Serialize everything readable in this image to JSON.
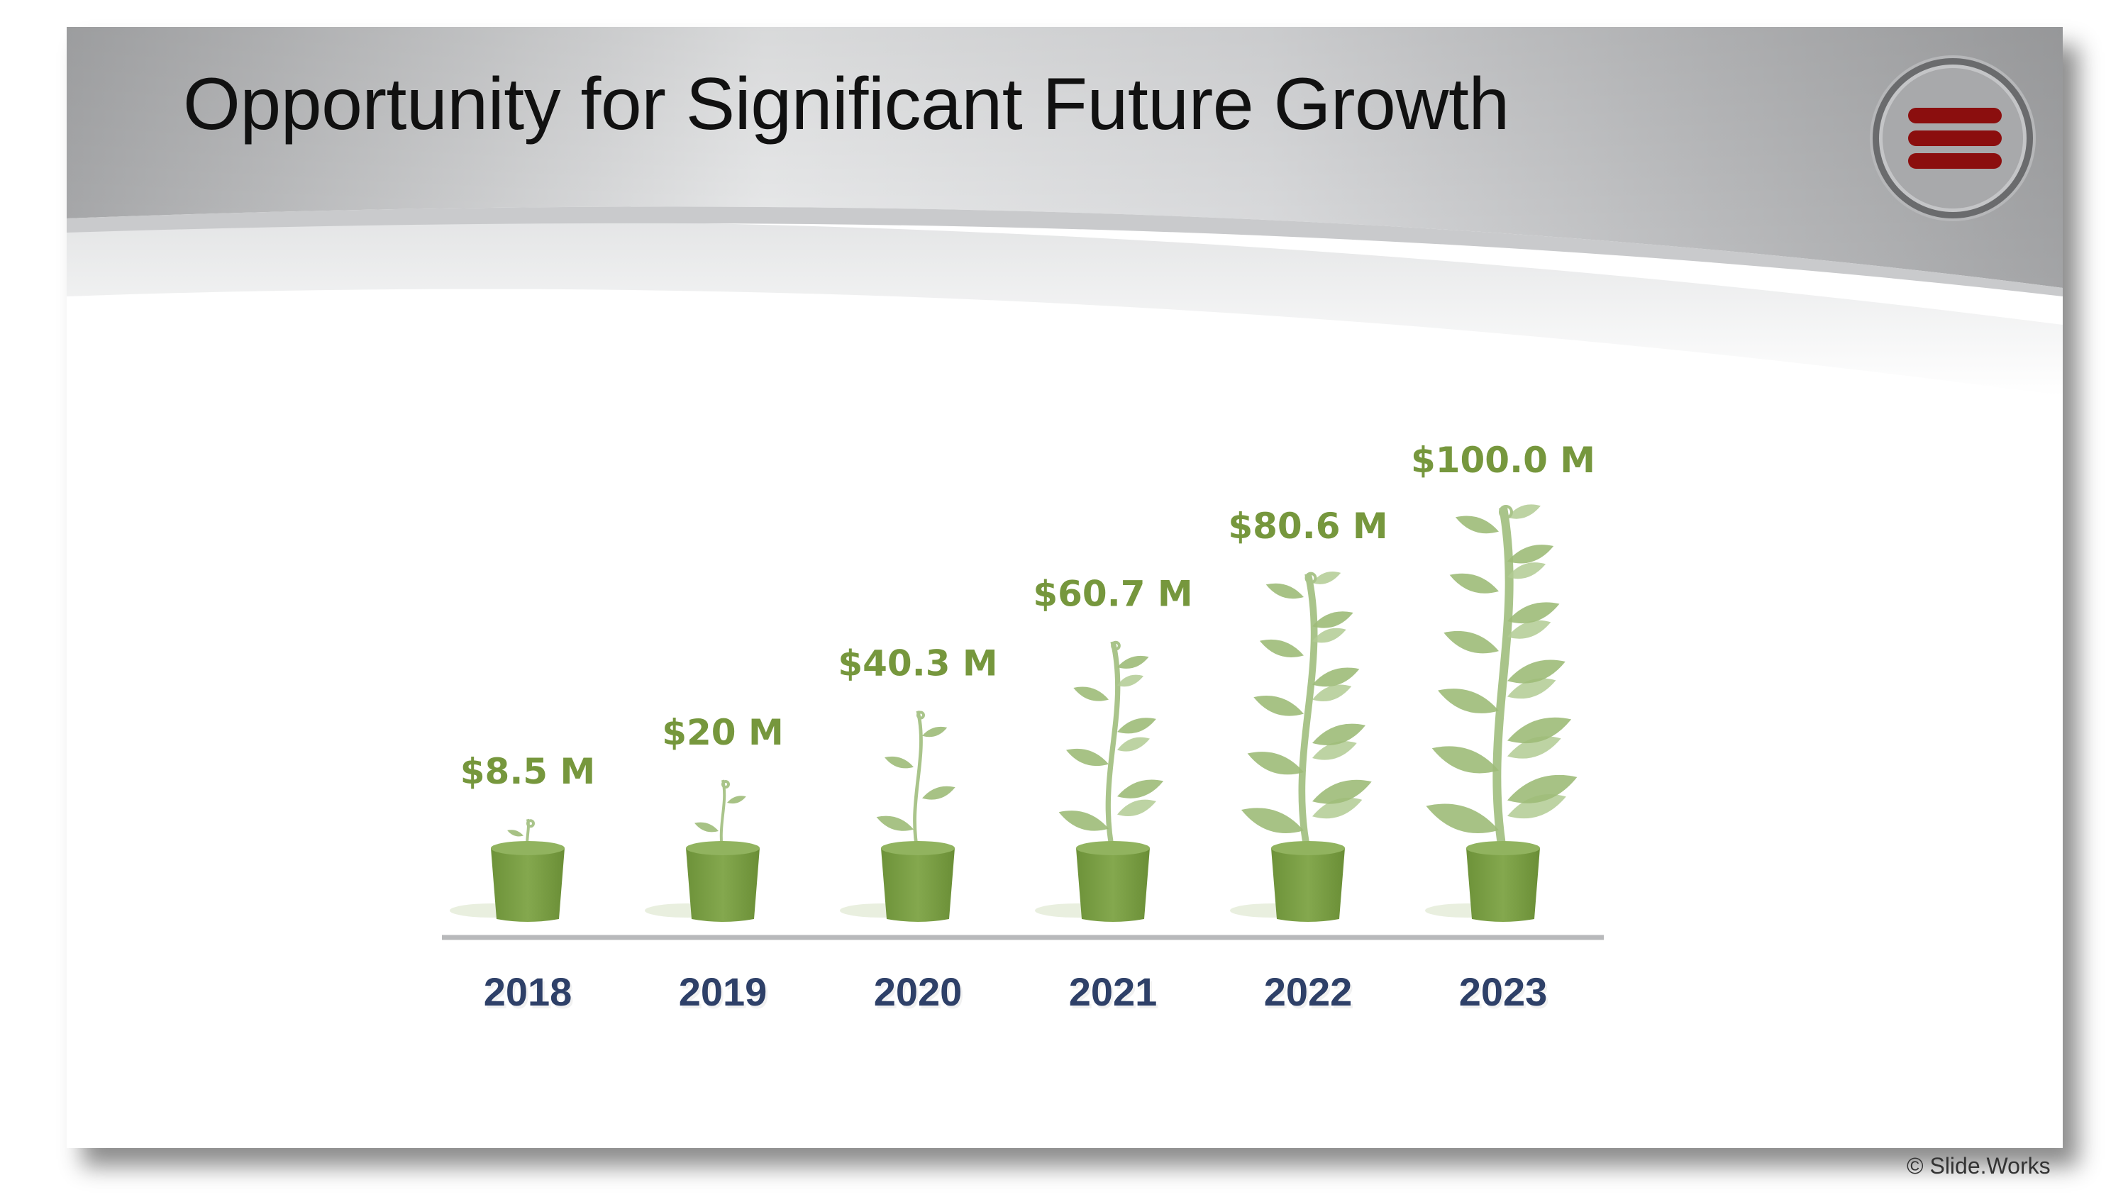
{
  "slide": {
    "title": "Opportunity for Significant Future Growth",
    "menu_icon": "hamburger-menu-icon",
    "copyright": "© Slide.Works"
  },
  "colors": {
    "value_label": "#76973d",
    "year_label": "#2e4068",
    "pot": "#7a9e45",
    "leaf": "#9dbb78",
    "menu_bars": "#8b0e0e"
  },
  "chart_data": {
    "type": "bar",
    "title": "Opportunity for Significant Future Growth",
    "categories": [
      "2018",
      "2019",
      "2020",
      "2021",
      "2022",
      "2023"
    ],
    "values": [
      8.5,
      20,
      40.3,
      60.7,
      80.6,
      100.0
    ],
    "value_labels": [
      "$8.5 M",
      "$20 M",
      "$40.3 M",
      "$60.7 M",
      "$80.6 M",
      "$100.0 M"
    ],
    "unit": "$ M",
    "xlabel": "",
    "ylabel": "",
    "ylim": [
      0,
      100
    ],
    "grid": false,
    "mark": "potted plant height"
  }
}
